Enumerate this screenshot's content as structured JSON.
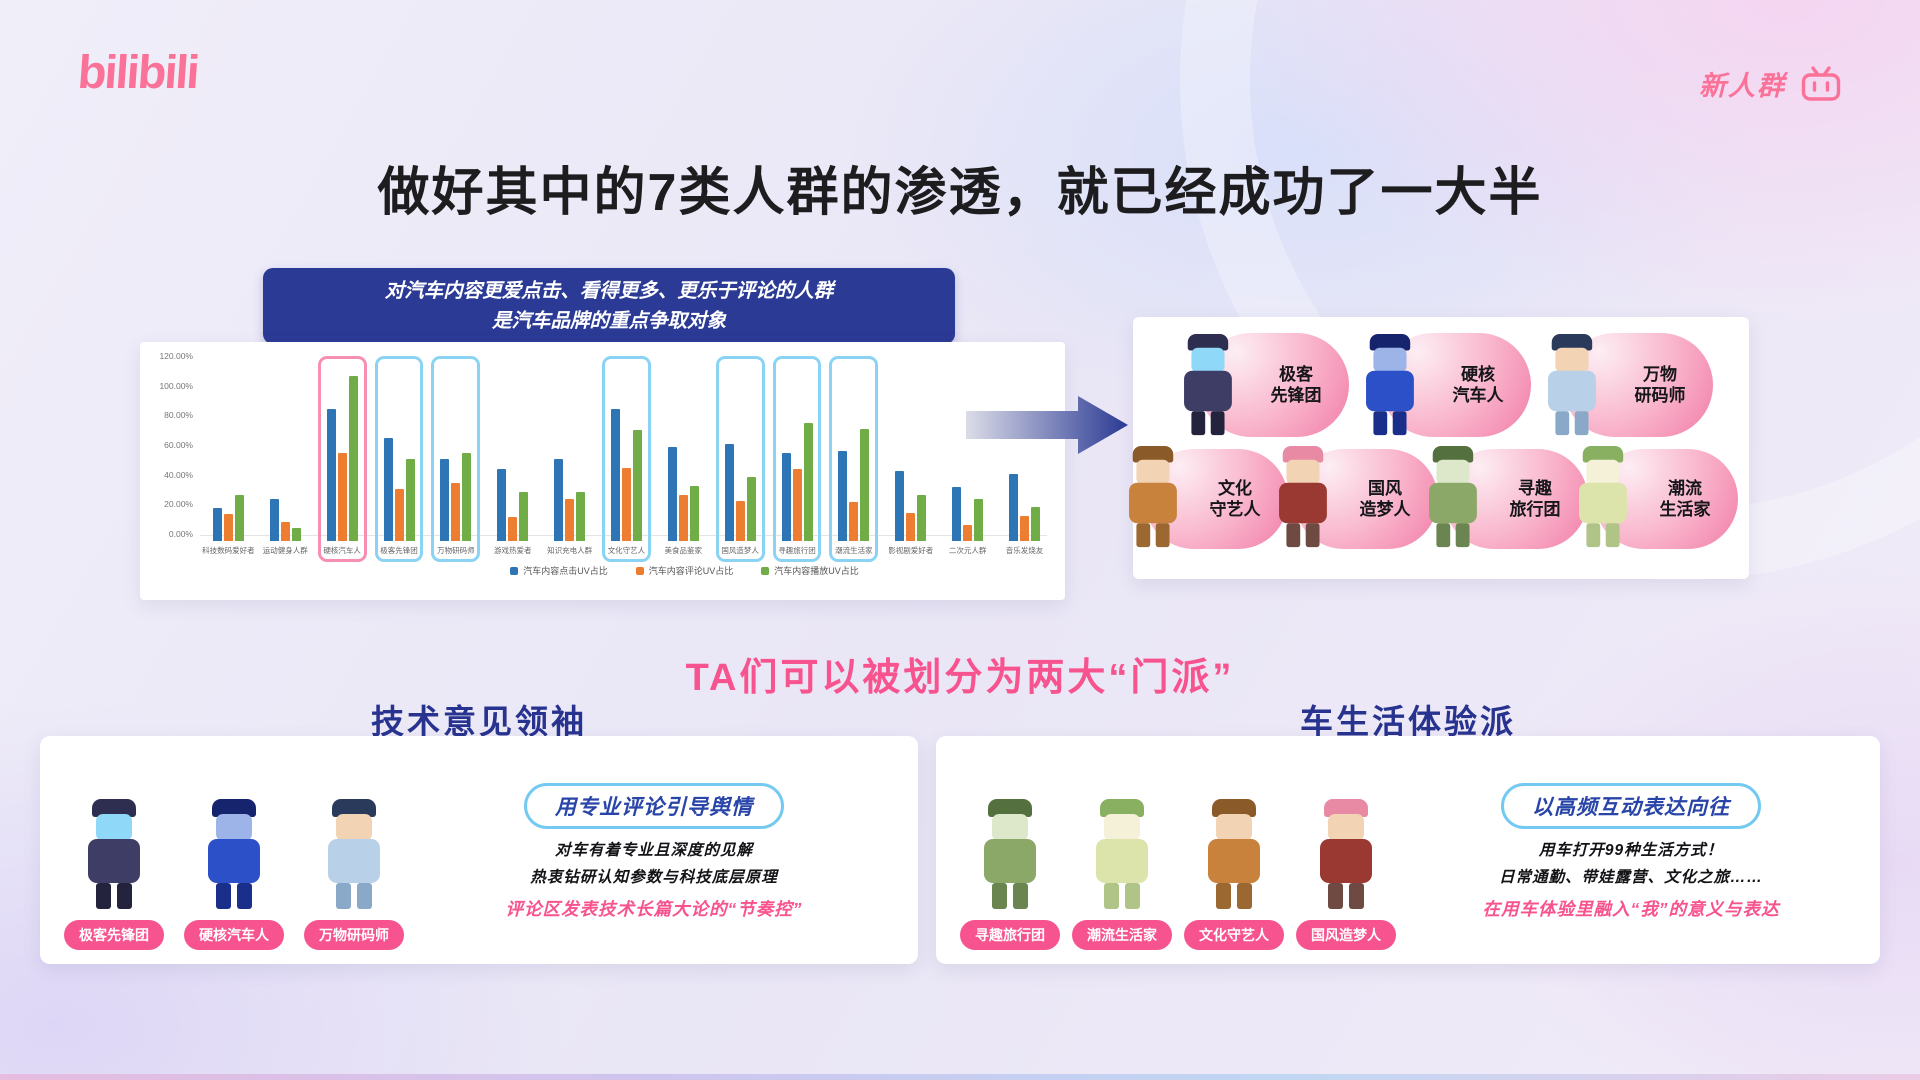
{
  "colors": {
    "brand_pink": "#fb7299",
    "headline_pink": "#f7538f",
    "navy": "#27338e",
    "chip_pink": "#f6538f",
    "pill_border": "#74c9f2",
    "bubble_pink": "#f27da9",
    "header_bg": "#2b3a94"
  },
  "brand": {
    "logo": "bilibili",
    "corner_label": "新人群",
    "corner_icon": "bilibili-tv-icon"
  },
  "title": "做好其中的7类人群的渗透，就已经成功了一大半",
  "chart_header": {
    "line1": "对汽车内容更爱点击、看得更多、更乐于评论的人群",
    "line2": "是汽车品牌的重点争取对象"
  },
  "chart_data": {
    "type": "bar",
    "title": "",
    "xlabel": "",
    "ylabel": "",
    "ylim": [
      0,
      120
    ],
    "grid": false,
    "legend_position": "bottom",
    "yticks": [
      "120.00%",
      "100.00%",
      "80.00%",
      "60.00%",
      "40.00%",
      "20.00%",
      "0.00%"
    ],
    "categories": [
      "科技数码爱好者",
      "运动健身人群",
      "硬核汽车人",
      "极客先锋团",
      "万物研码师",
      "游戏热爱者",
      "知识充电人群",
      "文化守艺人",
      "美食品鉴家",
      "国风造梦人",
      "寻趣旅行团",
      "潮流生活家",
      "影视剧爱好者",
      "二次元人群",
      "音乐发烧友"
    ],
    "series": [
      {
        "name": "汽车内容点击UV占比",
        "color": "#2E75B6",
        "values": [
          22,
          28,
          88,
          69,
          55,
          48,
          55,
          88,
          63,
          65,
          59,
          60,
          47,
          36,
          45
        ]
      },
      {
        "name": "汽车内容评论UV占比",
        "color": "#ED7D31",
        "values": [
          18,
          13,
          59,
          35,
          39,
          16,
          28,
          49,
          31,
          27,
          48,
          26,
          19,
          11,
          17
        ]
      },
      {
        "name": "汽车内容播放UV占比",
        "color": "#70AD47",
        "values": [
          31,
          9,
          110,
          55,
          59,
          33,
          33,
          74,
          37,
          43,
          79,
          75,
          31,
          28,
          23
        ]
      }
    ],
    "highlight_boxes": [
      {
        "index": 2,
        "color": "pink"
      },
      {
        "index": 3,
        "color": "blue"
      },
      {
        "index": 4,
        "color": "blue"
      },
      {
        "index": 7,
        "color": "blue"
      },
      {
        "index": 9,
        "color": "blue"
      },
      {
        "index": 10,
        "color": "blue"
      },
      {
        "index": 11,
        "color": "blue"
      }
    ]
  },
  "personas": [
    {
      "name": "极客先锋团",
      "lines": [
        "极客",
        "先锋团"
      ],
      "palette": {
        "hat": "#2e2e50",
        "skin": "#8fd8f8",
        "body": "#3d3d66",
        "legs": "#23233d"
      }
    },
    {
      "name": "硬核汽车人",
      "lines": [
        "硬核",
        "汽车人"
      ],
      "palette": {
        "hat": "#16246e",
        "skin": "#9db4e8",
        "body": "#2b50c8",
        "legs": "#1a2f8a"
      }
    },
    {
      "name": "万物研码师",
      "lines": [
        "万物",
        "研码师"
      ],
      "palette": {
        "hat": "#2a3a5a",
        "skin": "#f2d3b3",
        "body": "#b8d0e8",
        "legs": "#8aa8c8"
      }
    },
    {
      "name": "文化守艺人",
      "lines": [
        "文化",
        "守艺人"
      ],
      "palette": {
        "hat": "#8a5a28",
        "skin": "#f2d3b3",
        "body": "#c8823c",
        "legs": "#9a6830"
      }
    },
    {
      "name": "国风造梦人",
      "lines": [
        "国风",
        "造梦人"
      ],
      "palette": {
        "hat": "#e88aa4",
        "skin": "#f2d3b3",
        "body": "#9a3832",
        "legs": "#6e4a42"
      }
    },
    {
      "name": "寻趣旅行团",
      "lines": [
        "寻趣",
        "旅行团"
      ],
      "palette": {
        "hat": "#55703f",
        "skin": "#dde8cb",
        "body": "#8ca868",
        "legs": "#6a8550"
      }
    },
    {
      "name": "潮流生活家",
      "lines": [
        "潮流",
        "生活家"
      ],
      "palette": {
        "hat": "#88b060",
        "skin": "#f5f0d8",
        "body": "#dce4ac",
        "legs": "#b0c488"
      }
    }
  ],
  "personas_layout": {
    "top_row": [
      "极客先锋团",
      "硬核汽车人",
      "万物研码师"
    ],
    "bottom_row": [
      "文化守艺人",
      "国风造梦人",
      "寻趣旅行团",
      "潮流生活家"
    ]
  },
  "divider_text": "TA们可以被划分为两大“门派”",
  "factions": {
    "left": {
      "title": "技术意见领袖",
      "members": [
        "极客先锋团",
        "硬核汽车人",
        "万物研码师"
      ],
      "pill": "用专业评论引导舆情",
      "lines": [
        "对车有着专业且深度的见解",
        "热衷钻研认知参数与科技底层原理"
      ],
      "highlight": "评论区发表技术长篇大论的“节奏控”"
    },
    "right": {
      "title": "车生活体验派",
      "members": [
        "寻趣旅行团",
        "潮流生活家",
        "文化守艺人",
        "国风造梦人"
      ],
      "pill": "以高频互动表达向往",
      "lines": [
        "用车打开99种生活方式！",
        "日常通勤、带娃露营、文化之旅……"
      ],
      "highlight": "在用车体验里融入“我”的意义与表达"
    }
  }
}
